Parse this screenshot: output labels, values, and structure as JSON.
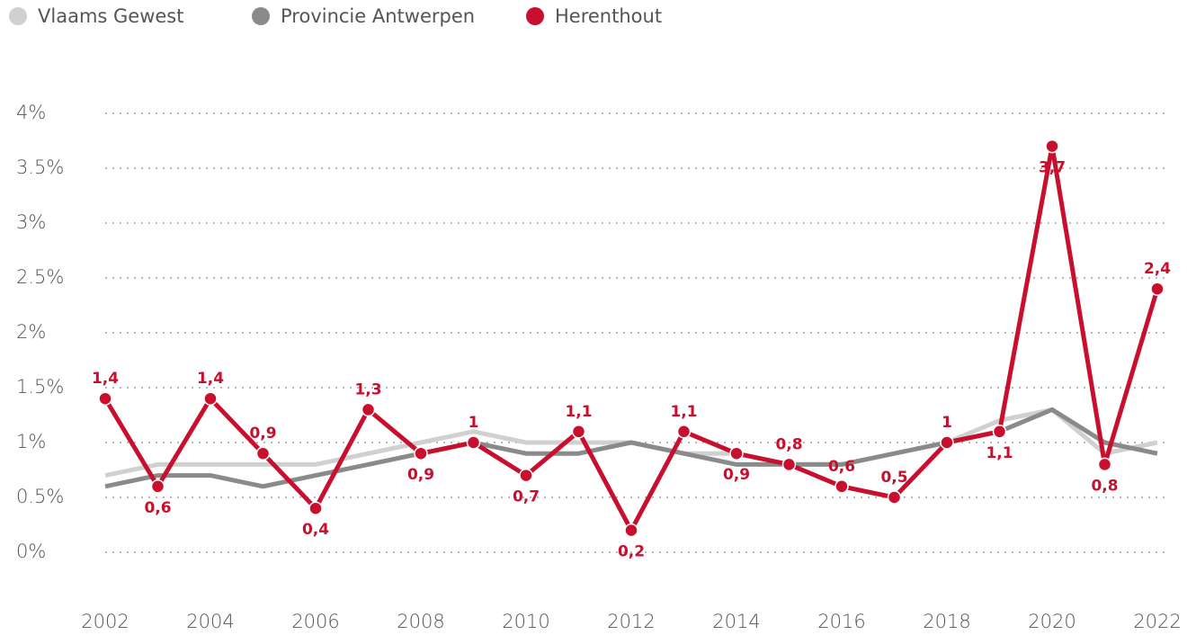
{
  "chart_data": {
    "type": "line",
    "x": [
      2002,
      2003,
      2004,
      2005,
      2006,
      2007,
      2008,
      2009,
      2010,
      2011,
      2012,
      2013,
      2014,
      2015,
      2016,
      2017,
      2018,
      2019,
      2020,
      2021,
      2022
    ],
    "xlim": [
      2002,
      2022
    ],
    "xticks": [
      2002,
      2004,
      2006,
      2008,
      2010,
      2012,
      2014,
      2016,
      2018,
      2020,
      2022
    ],
    "ylim": [
      0,
      4
    ],
    "yticks": [
      {
        "value": 0,
        "label": "0%"
      },
      {
        "value": 0.5,
        "label": "0.5%"
      },
      {
        "value": 1,
        "label": "1%"
      },
      {
        "value": 1.5,
        "label": "1.5%"
      },
      {
        "value": 2,
        "label": "2%"
      },
      {
        "value": 2.5,
        "label": "2.5%"
      },
      {
        "value": 3,
        "label": "3%"
      },
      {
        "value": 3.5,
        "label": "3.5%"
      },
      {
        "value": 4,
        "label": "4%"
      }
    ],
    "grid": true,
    "series": [
      {
        "name": "Vlaams Gewest",
        "color": "#d0d0d0",
        "values": [
          0.7,
          0.8,
          0.8,
          0.8,
          0.8,
          0.9,
          1.0,
          1.1,
          1.0,
          1.0,
          1.0,
          0.9,
          0.9,
          0.8,
          0.8,
          0.9,
          1.0,
          1.2,
          1.3,
          0.9,
          1.0
        ]
      },
      {
        "name": "Provincie Antwerpen",
        "color": "#8a8a8b",
        "values": [
          0.6,
          0.7,
          0.7,
          0.6,
          0.7,
          0.8,
          0.9,
          1.0,
          0.9,
          0.9,
          1.0,
          0.9,
          0.8,
          0.8,
          0.8,
          0.9,
          1.0,
          1.1,
          1.3,
          1.0,
          0.9
        ]
      },
      {
        "name": "Herenthout",
        "color": "#c8102e",
        "values": [
          1.4,
          0.6,
          1.4,
          0.9,
          0.4,
          1.3,
          0.9,
          1,
          0.7,
          1.1,
          0.2,
          1.1,
          0.9,
          0.8,
          0.6,
          0.5,
          1,
          1.1,
          3.7,
          0.8,
          2.4
        ],
        "value_labels": [
          "1,4",
          "0,6",
          "1,4",
          "0,9",
          "0,4",
          "1,3",
          "0,9",
          "1",
          "0,7",
          "1,1",
          "0,2",
          "1,1",
          "0,9",
          "0,8",
          "0,6",
          "0,5",
          "1",
          "1,1",
          "3,7",
          "0,8",
          "2,4"
        ]
      }
    ]
  }
}
